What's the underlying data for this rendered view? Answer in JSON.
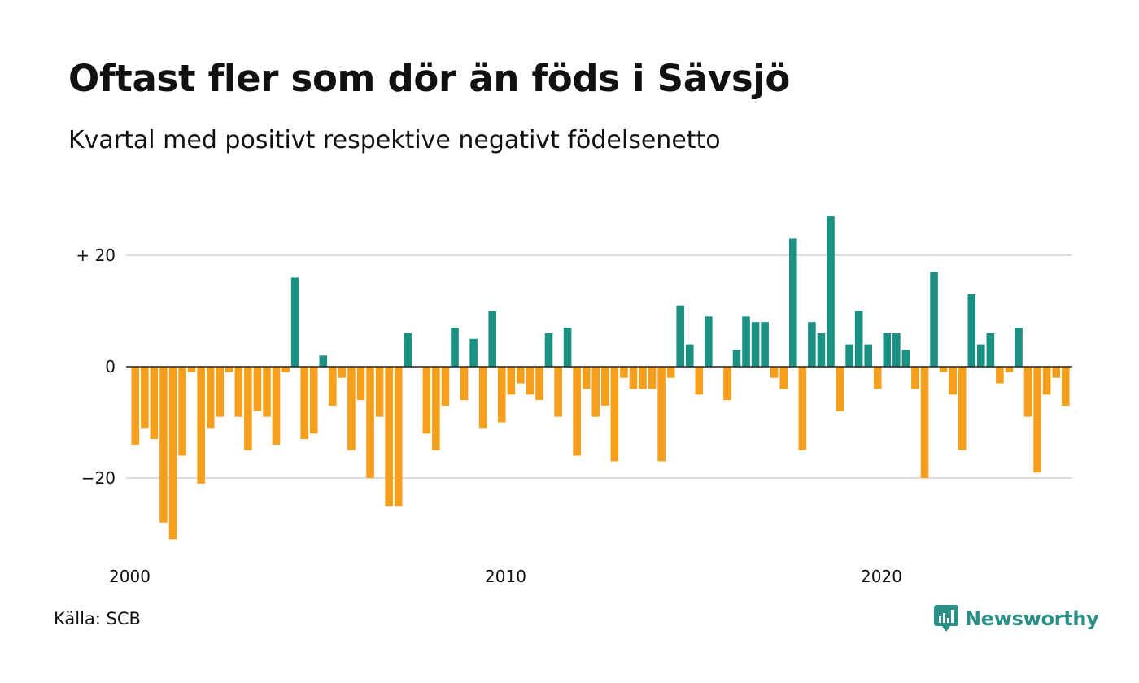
{
  "title": "Oftast fler som dör än föds i Sävsjö",
  "subtitle": "Kvartal med positivt respektive negativt födelsenetto",
  "source": "Källa: SCB",
  "brand": {
    "name": "Newsworthy",
    "icon": "newsworthy-logo-icon",
    "color": "#2a8f86"
  },
  "colors": {
    "positive": "#1a9182",
    "negative": "#f59f1c",
    "gridline": "#dddddd",
    "zero_line": "#222222"
  },
  "chart_data": {
    "type": "bar",
    "x_tick_labels": [
      "2000",
      "2010",
      "2020"
    ],
    "y_ticks": [
      {
        "value": 20,
        "label": "+ 20"
      },
      {
        "value": 0,
        "label": "0"
      },
      {
        "value": -20,
        "label": "−20"
      }
    ],
    "ylim": [
      -32,
      28
    ],
    "grid": true,
    "first_quarter": "2000-Q1",
    "values": [
      -14,
      -11,
      -13,
      -28,
      -31,
      -16,
      -1,
      -21,
      -11,
      -9,
      -1,
      -9,
      -15,
      -8,
      -9,
      -14,
      -1,
      16,
      -13,
      -12,
      2,
      -7,
      -2,
      -15,
      -6,
      -20,
      -9,
      -25,
      -25,
      6,
      0,
      -12,
      -15,
      -7,
      7,
      -6,
      5,
      -11,
      10,
      -10,
      -5,
      -3,
      -5,
      -6,
      6,
      -9,
      7,
      -16,
      -4,
      -9,
      -7,
      -17,
      -2,
      -4,
      -4,
      -4,
      -17,
      -2,
      11,
      4,
      -5,
      9,
      0,
      -6,
      3,
      9,
      8,
      8,
      -2,
      -4,
      23,
      -15,
      8,
      6,
      27,
      -8,
      4,
      10,
      4,
      -4,
      6,
      6,
      3,
      -4,
      -20,
      17,
      -1,
      -5,
      -15,
      13,
      4,
      6,
      -3,
      -1,
      7,
      -9,
      -19,
      -5,
      -2,
      -7
    ]
  }
}
